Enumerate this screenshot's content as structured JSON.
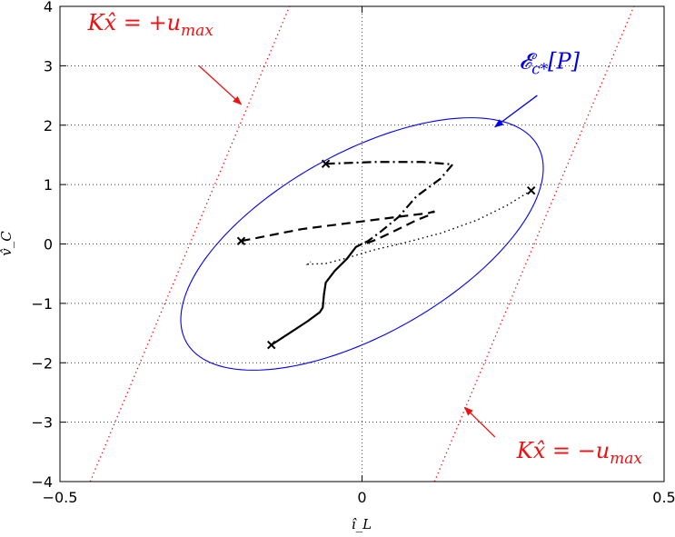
{
  "chart_data": {
    "type": "line",
    "title": "",
    "xlabel": "î_L",
    "ylabel": "v̂_C",
    "xlim": [
      -0.5,
      0.5
    ],
    "ylim": [
      -4,
      4
    ],
    "x_ticks": [
      -0.5,
      0,
      0.5
    ],
    "x_tick_labels": [
      "−0.5",
      "0",
      "0.5"
    ],
    "y_ticks": [
      -4,
      -3,
      -2,
      -1,
      0,
      1,
      2,
      3,
      4
    ],
    "y_tick_labels": [
      "−4",
      "−3",
      "−2",
      "−1",
      "0",
      "1",
      "2",
      "3",
      "4"
    ],
    "grid": true,
    "colors": {
      "constraint": "#ff0000",
      "ellipse": "#0000ff",
      "trajectory": "#000000",
      "annotation_red": "#ee1111",
      "annotation_blue": "#0000ee"
    },
    "constraints": [
      {
        "label_prefix": "Kx̂ = +u",
        "label_sub": "max",
        "points": [
          [
            -0.45,
            -4
          ],
          [
            -0.12,
            4
          ]
        ]
      },
      {
        "label_prefix": "Kx̂ = −u",
        "label_sub": "max",
        "points": [
          [
            0.12,
            -4
          ],
          [
            0.45,
            4
          ]
        ]
      }
    ],
    "ellipse": {
      "label_main": "𝓔",
      "label_sub": "c*",
      "label_rest": "[P]",
      "center": [
        0,
        0
      ],
      "semi_major_x": 0.3,
      "semi_minor_x": 0.14,
      "tilt_slope": 5.9
    },
    "annotations": [
      {
        "text_key": "constraints.0",
        "text_pos": [
          -0.35,
          3.6
        ],
        "arrow_from": [
          -0.27,
          3.0
        ],
        "arrow_to": [
          -0.2,
          2.35
        ]
      },
      {
        "text_key": "constraints.1",
        "text_pos": [
          0.36,
          -3.6
        ],
        "arrow_from": [
          0.22,
          -3.25
        ],
        "arrow_to": [
          0.17,
          -2.75
        ]
      },
      {
        "text_key": "ellipse",
        "text_pos": [
          0.31,
          2.95
        ],
        "arrow_from": [
          0.29,
          2.5
        ],
        "arrow_to": [
          0.22,
          1.97
        ]
      }
    ],
    "series": [
      {
        "style": "solid",
        "start": [
          -0.15,
          -1.7
        ],
        "points": [
          [
            -0.15,
            -1.7
          ],
          [
            -0.12,
            -1.5
          ],
          [
            -0.09,
            -1.3
          ],
          [
            -0.07,
            -1.15
          ],
          [
            -0.065,
            -1.07
          ],
          [
            -0.063,
            -0.85
          ],
          [
            -0.06,
            -0.65
          ],
          [
            -0.045,
            -0.45
          ],
          [
            -0.025,
            -0.25
          ],
          [
            -0.01,
            -0.05
          ],
          [
            0.0,
            0.0
          ]
        ]
      },
      {
        "style": "dashed",
        "start": [
          -0.2,
          0.05
        ],
        "points": [
          [
            -0.2,
            0.05
          ],
          [
            -0.1,
            0.25
          ],
          [
            0.0,
            0.38
          ],
          [
            0.07,
            0.47
          ],
          [
            0.11,
            0.52
          ],
          [
            0.12,
            0.55
          ],
          [
            0.11,
            0.48
          ],
          [
            0.09,
            0.4
          ],
          [
            0.05,
            0.2
          ],
          [
            0.025,
            0.08
          ],
          [
            0.01,
            0.02
          ],
          [
            0.0,
            0.0
          ]
        ]
      },
      {
        "style": "dash-dot",
        "start": [
          -0.06,
          1.35
        ],
        "points": [
          [
            -0.06,
            1.35
          ],
          [
            0.02,
            1.38
          ],
          [
            0.1,
            1.38
          ],
          [
            0.15,
            1.34
          ],
          [
            0.13,
            1.1
          ],
          [
            0.09,
            0.8
          ],
          [
            0.06,
            0.45
          ],
          [
            0.03,
            0.2
          ],
          [
            0.01,
            0.05
          ],
          [
            0.0,
            0.0
          ]
        ]
      },
      {
        "style": "dotted",
        "start": [
          0.28,
          0.9
        ],
        "points": [
          [
            0.28,
            0.9
          ],
          [
            0.24,
            0.65
          ],
          [
            0.19,
            0.4
          ],
          [
            0.13,
            0.18
          ],
          [
            0.07,
            0.02
          ],
          [
            0.02,
            -0.1
          ],
          [
            -0.03,
            -0.25
          ],
          [
            -0.06,
            -0.33
          ],
          [
            -0.09,
            -0.34
          ],
          [
            -0.085,
            -0.3
          ]
        ]
      }
    ]
  }
}
